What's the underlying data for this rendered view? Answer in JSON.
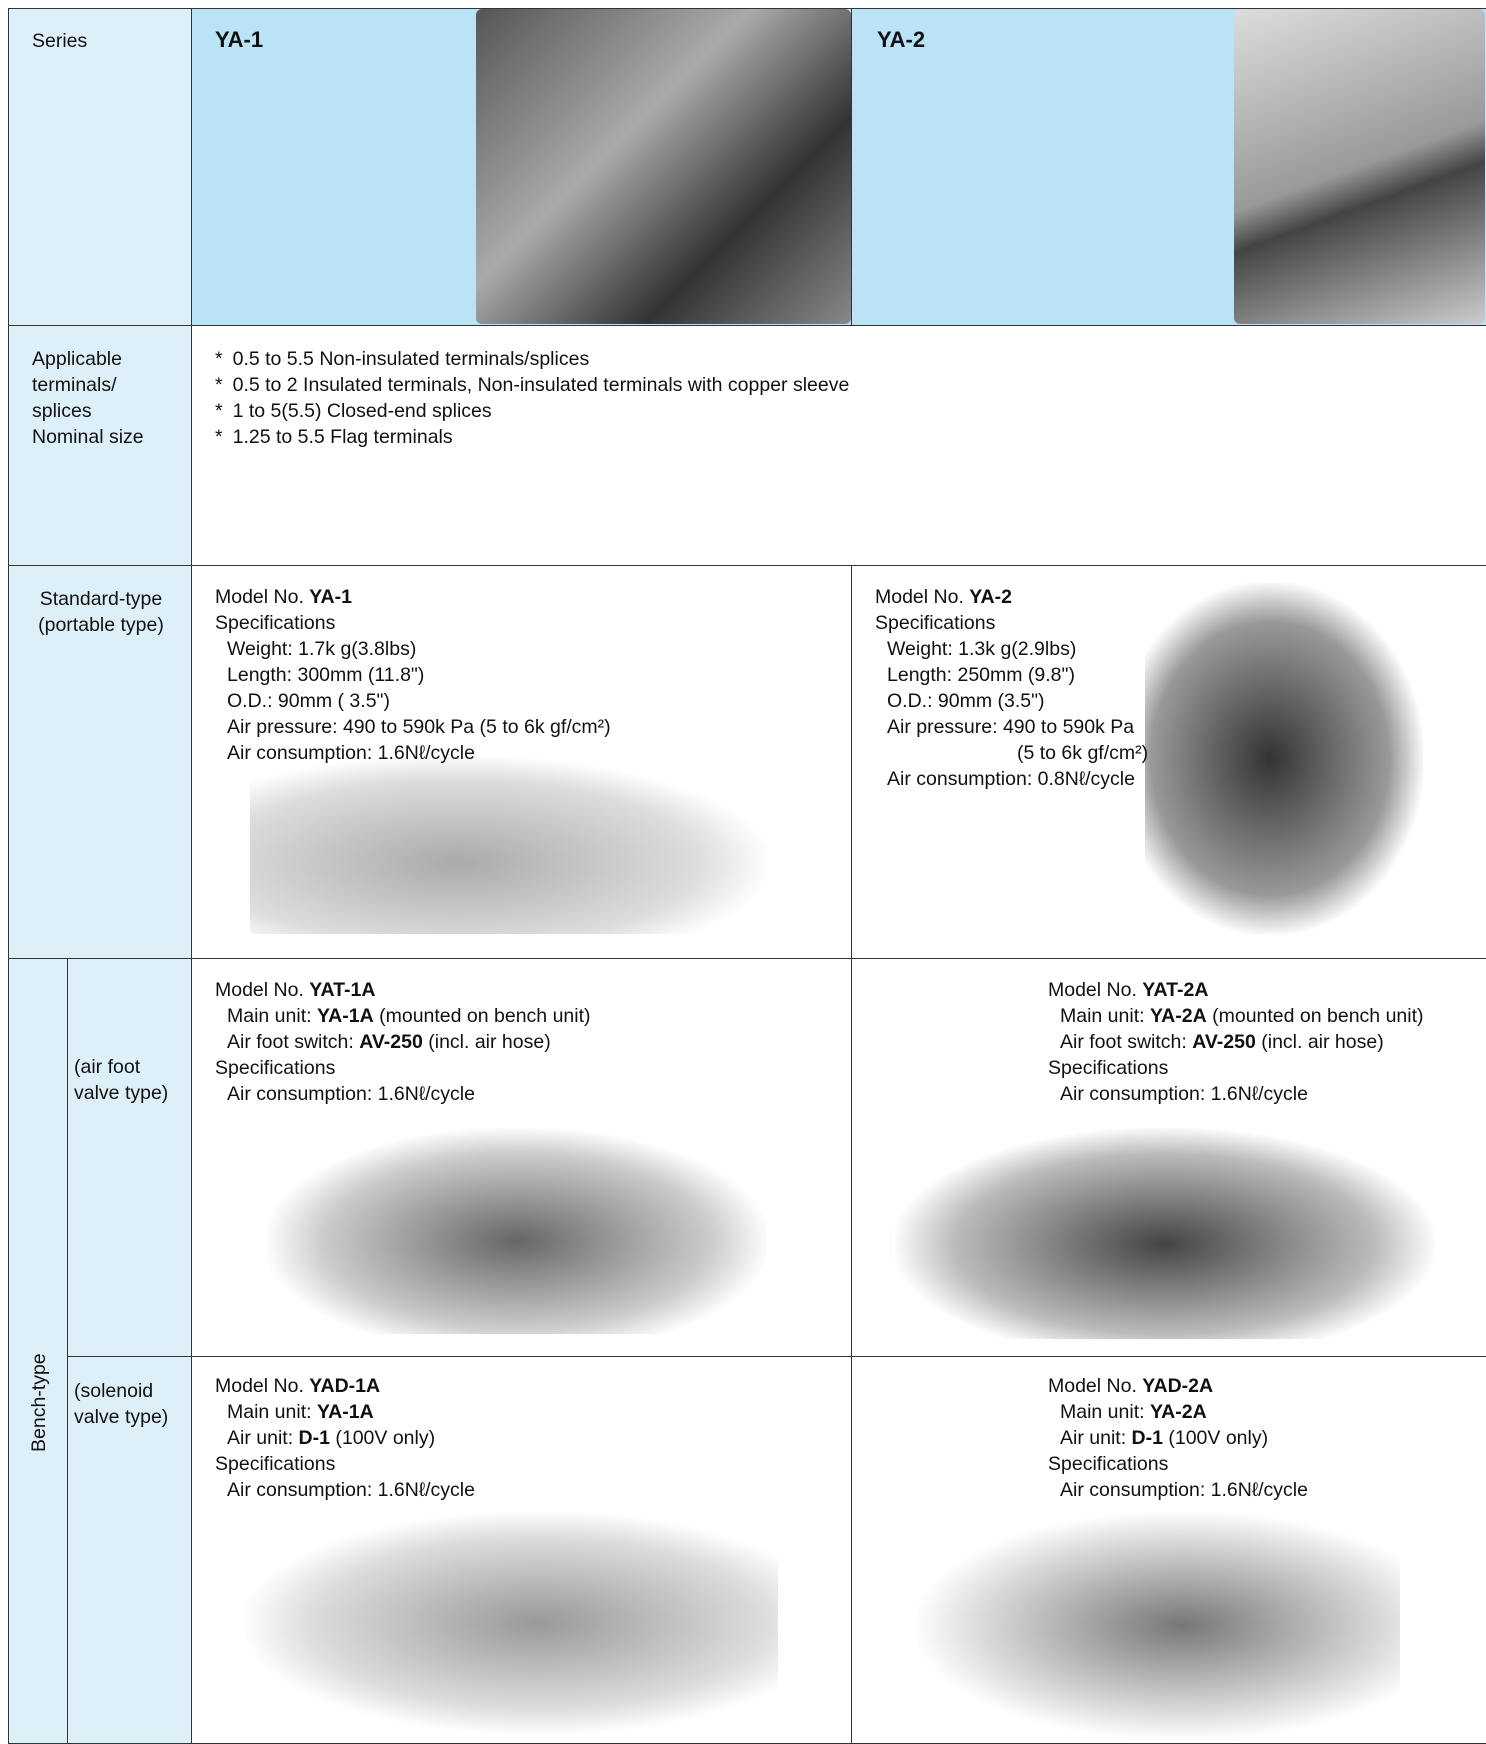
{
  "header": {
    "series_label": "Series",
    "col1": "YA-1",
    "col2": "YA-2"
  },
  "applicable": {
    "label": [
      "Applicable",
      "terminals/",
      "splices",
      "Nominal size"
    ],
    "bullet": "*",
    "items": [
      "0.5 to 5.5 Non-insulated terminals/splices",
      "0.5 to 2 Insulated terminals, Non-insulated terminals with copper sleeve",
      "1 to 5(5.5) Closed-end splices",
      "1.25 to 5.5 Flag terminals"
    ]
  },
  "standard": {
    "label": [
      "Standard-type",
      "(portable type)"
    ],
    "col1": {
      "model": [
        "Model No. ",
        "YA-1"
      ],
      "details": [],
      "specs_heading": "Specifications",
      "specs": [
        "Weight: 1.7k g(3.8lbs)",
        "Length: 300mm (11.8\")",
        "O.D.: 90mm ( 3.5\")",
        "Air pressure: 490 to 590k Pa (5 to 6k gf/cm²)",
        "Air consumption: 1.6Nℓ/cycle"
      ]
    },
    "col2": {
      "model": [
        "Model No. ",
        "YA-2"
      ],
      "details": [],
      "specs_heading": "Specifications",
      "specs": [
        "Weight: 1.3k g(2.9lbs)",
        "Length: 250mm (9.8\")",
        "O.D.: 90mm (3.5\")",
        [
          "Air pressure: 490 to 590k Pa",
          "(5 to 6k gf/cm²)"
        ],
        "Air consumption: 0.8Nℓ/cycle"
      ]
    }
  },
  "bench": {
    "label": "Bench-type",
    "air_foot": {
      "label": [
        "(air foot",
        " valve type)"
      ],
      "col1": {
        "model": [
          "Model No. ",
          "YAT-1A"
        ],
        "details": [
          [
            "Main unit: ",
            "YA-1A",
            " (mounted on bench unit)"
          ],
          [
            "Air foot switch: ",
            "AV-250",
            " (incl. air hose)"
          ]
        ],
        "specs_heading": "Specifications",
        "specs": [
          "Air consumption: 1.6Nℓ/cycle"
        ]
      },
      "col2": {
        "model": [
          "Model No. ",
          "YAT-2A"
        ],
        "details": [
          [
            "Main unit: ",
            "YA-2A",
            " (mounted on bench unit)"
          ],
          [
            "Air foot switch: ",
            "AV-250",
            " (incl. air hose)"
          ]
        ],
        "specs_heading": "Specifications",
        "specs": [
          "Air consumption: 1.6Nℓ/cycle"
        ]
      }
    },
    "solenoid": {
      "label": [
        "(solenoid",
        " valve type)"
      ],
      "col1": {
        "model": [
          "Model No. ",
          "YAD-1A"
        ],
        "details": [
          [
            "Main unit: ",
            "YA-1A"
          ],
          [
            "Air unit: ",
            "D-1",
            " (100V only)"
          ]
        ],
        "specs_heading": "Specifications",
        "specs": [
          "Air consumption: 1.6Nℓ/cycle"
        ]
      },
      "col2": {
        "model": [
          "Model No. ",
          "YAD-2A"
        ],
        "details": [
          [
            "Main unit: ",
            "YA-2A"
          ],
          [
            "Air unit: ",
            "D-1",
            " (100V only)"
          ]
        ],
        "specs_heading": "Specifications",
        "specs": [
          "Air consumption: 1.6Nℓ/cycle"
        ]
      }
    }
  }
}
